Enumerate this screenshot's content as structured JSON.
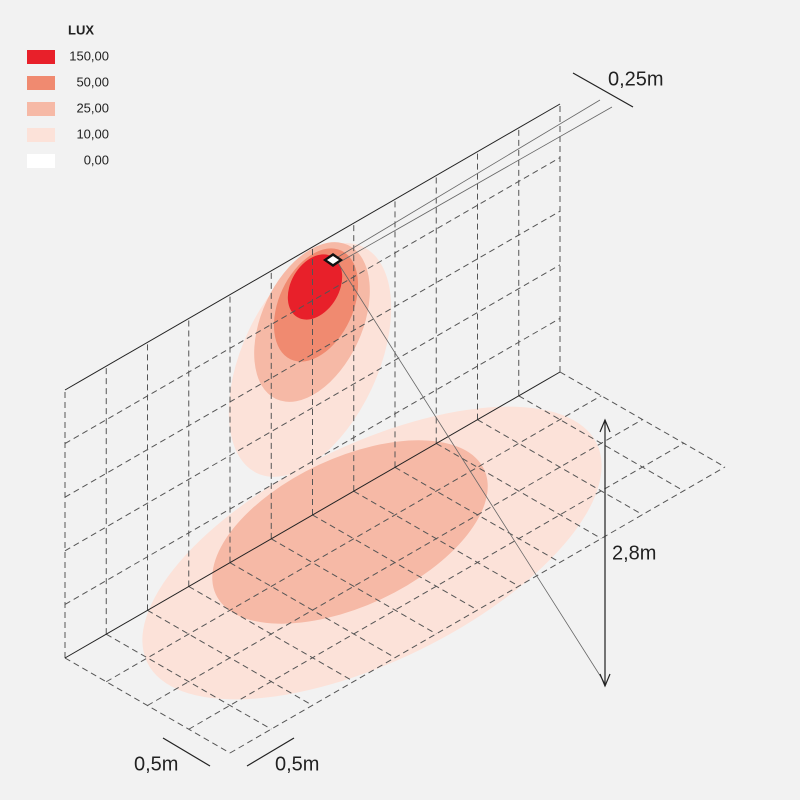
{
  "legend": {
    "title": "LUX",
    "items": [
      {
        "label": "150,00",
        "color": "#e8202a"
      },
      {
        "label": "50,00",
        "color": "#f08a70"
      },
      {
        "label": "25,00",
        "color": "#f6b9a6"
      },
      {
        "label": "10,00",
        "color": "#fce2d9"
      },
      {
        "label": "0,00",
        "color": "#ffffff"
      }
    ]
  },
  "dimensions": {
    "fixture_depth": "0,25m",
    "mounting_height": "2,8m",
    "grid_x": "0,5m",
    "grid_y": "0,5m"
  }
}
